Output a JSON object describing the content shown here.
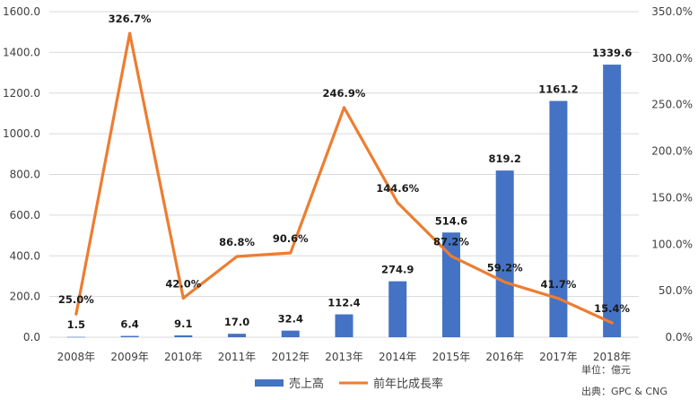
{
  "chart_data": {
    "type": "bar+line",
    "categories": [
      "2008年",
      "2009年",
      "2010年",
      "2011年",
      "2012年",
      "2013年",
      "2014年",
      "2015年",
      "2016年",
      "2017年",
      "2018年"
    ],
    "series": [
      {
        "name": "売上高",
        "type": "bar",
        "axis": "left",
        "color": "#4472c4",
        "values": [
          1.5,
          6.4,
          9.1,
          17.0,
          32.4,
          112.4,
          274.9,
          514.6,
          819.2,
          1161.2,
          1339.6
        ],
        "labels": [
          "1.5",
          "6.4",
          "9.1",
          "17.0",
          "32.4",
          "112.4",
          "274.9",
          "514.6",
          "819.2",
          "1161.2",
          "1339.6"
        ]
      },
      {
        "name": "前年比成長率",
        "type": "line",
        "axis": "right",
        "color": "#ed7d31",
        "values": [
          25.0,
          326.7,
          42.0,
          86.8,
          90.6,
          246.9,
          144.6,
          87.2,
          59.2,
          41.7,
          15.4
        ],
        "labels": [
          "25.0%",
          "326.7%",
          "42.0%",
          "86.8%",
          "90.6%",
          "246.9%",
          "144.6%",
          "87.2%",
          "59.2%",
          "41.7%",
          "15.4%"
        ]
      }
    ],
    "y_left": {
      "range": [
        0,
        1600
      ],
      "ticks": [
        0,
        200,
        400,
        600,
        800,
        1000,
        1200,
        1400,
        1600
      ],
      "tick_labels": [
        "0.0",
        "200.0",
        "400.0",
        "600.0",
        "800.0",
        "1000.0",
        "1200.0",
        "1400.0",
        "1600.0"
      ]
    },
    "y_right": {
      "range": [
        0,
        350
      ],
      "ticks": [
        0,
        50,
        100,
        150,
        200,
        250,
        300,
        350
      ],
      "tick_labels": [
        "0.0%",
        "50.0%",
        "100.0%",
        "150.0%",
        "200.0%",
        "250.0%",
        "300.0%",
        "350.0%"
      ]
    },
    "grid": true,
    "legend": "bottom-center",
    "notes": {
      "unit": "単位：億元",
      "source": "出典：GPC & CNG"
    }
  }
}
